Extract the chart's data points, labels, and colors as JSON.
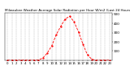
{
  "title": "Milwaukee Weather Average Solar Radiation per Hour W/m2 (Last 24 Hours)",
  "hours": [
    0,
    1,
    2,
    3,
    4,
    5,
    6,
    7,
    8,
    9,
    10,
    11,
    12,
    13,
    14,
    15,
    16,
    17,
    18,
    19,
    20,
    21,
    22,
    23
  ],
  "values": [
    0,
    0,
    0,
    0,
    0,
    0,
    0,
    2,
    25,
    80,
    160,
    280,
    370,
    450,
    480,
    420,
    310,
    175,
    60,
    10,
    0,
    0,
    0,
    0
  ],
  "line_color": "#ff0000",
  "bg_color": "#ffffff",
  "grid_color": "#aaaaaa",
  "ylim": [
    0,
    520
  ],
  "yticks": [
    100,
    200,
    300,
    400,
    500
  ],
  "ylabel_fontsize": 3.0,
  "xlabel_fontsize": 2.8,
  "title_fontsize": 3.0
}
